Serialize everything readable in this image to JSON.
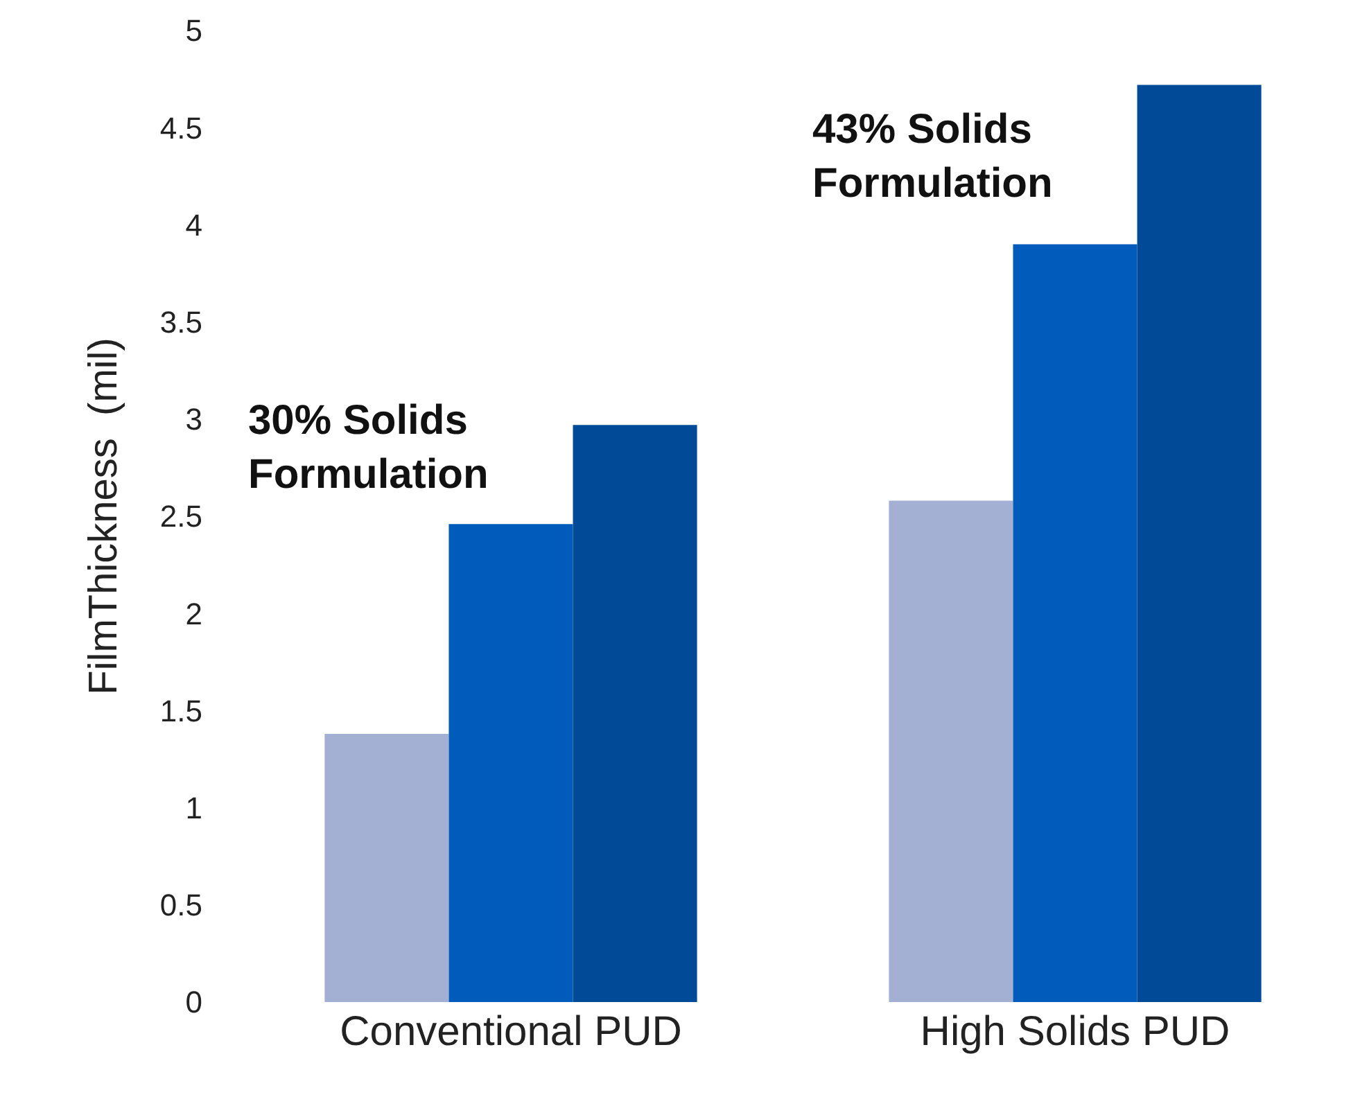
{
  "chart_data": {
    "type": "bar",
    "ylabel": "FilmThickness  (mil)",
    "categories": [
      "Conventional PUD",
      "High Solids PUD"
    ],
    "series": [
      {
        "color": "#a3b0d3",
        "values": [
          1.38,
          2.58
        ]
      },
      {
        "color": "#005bbb",
        "values": [
          2.46,
          3.9
        ]
      },
      {
        "color": "#004a97",
        "values": [
          2.97,
          4.72
        ]
      }
    ],
    "ylim": [
      0,
      5
    ],
    "yticks": [
      0,
      0.5,
      1,
      1.5,
      2,
      2.5,
      3,
      3.5,
      4,
      4.5,
      5
    ],
    "annotations": [
      "30% Solids\nFormulation",
      "43% Solids\nFormulation"
    ]
  }
}
